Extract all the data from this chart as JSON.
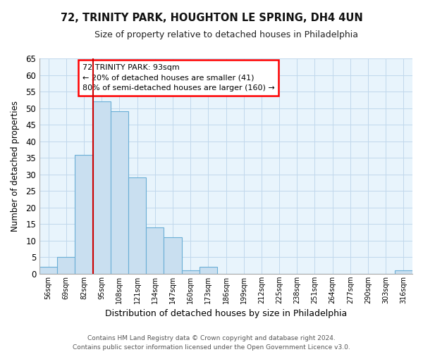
{
  "title": "72, TRINITY PARK, HOUGHTON LE SPRING, DH4 4UN",
  "subtitle": "Size of property relative to detached houses in Philadelphia",
  "xlabel": "Distribution of detached houses by size in Philadelphia",
  "ylabel": "Number of detached properties",
  "bin_labels": [
    "56sqm",
    "69sqm",
    "82sqm",
    "95sqm",
    "108sqm",
    "121sqm",
    "134sqm",
    "147sqm",
    "160sqm",
    "173sqm",
    "186sqm",
    "199sqm",
    "212sqm",
    "225sqm",
    "238sqm",
    "251sqm",
    "264sqm",
    "277sqm",
    "290sqm",
    "303sqm",
    "316sqm"
  ],
  "bar_heights": [
    2,
    5,
    36,
    52,
    49,
    29,
    14,
    11,
    1,
    2,
    0,
    0,
    0,
    0,
    0,
    0,
    0,
    0,
    0,
    0,
    1
  ],
  "bar_color": "#c9dff0",
  "bar_edge_color": "#6aaed6",
  "vline_color": "#cc0000",
  "vline_pos": 3.0,
  "ylim": [
    0,
    65
  ],
  "yticks": [
    0,
    5,
    10,
    15,
    20,
    25,
    30,
    35,
    40,
    45,
    50,
    55,
    60,
    65
  ],
  "annotation_title": "72 TRINITY PARK: 93sqm",
  "annotation_line1": "← 20% of detached houses are smaller (41)",
  "annotation_line2": "80% of semi-detached houses are larger (160) →",
  "footer_line1": "Contains HM Land Registry data © Crown copyright and database right 2024.",
  "footer_line2": "Contains public sector information licensed under the Open Government Licence v3.0.",
  "bg_color": "#ffffff",
  "plot_bg_color": "#e8f4fc",
  "grid_color": "#c0d8ec"
}
